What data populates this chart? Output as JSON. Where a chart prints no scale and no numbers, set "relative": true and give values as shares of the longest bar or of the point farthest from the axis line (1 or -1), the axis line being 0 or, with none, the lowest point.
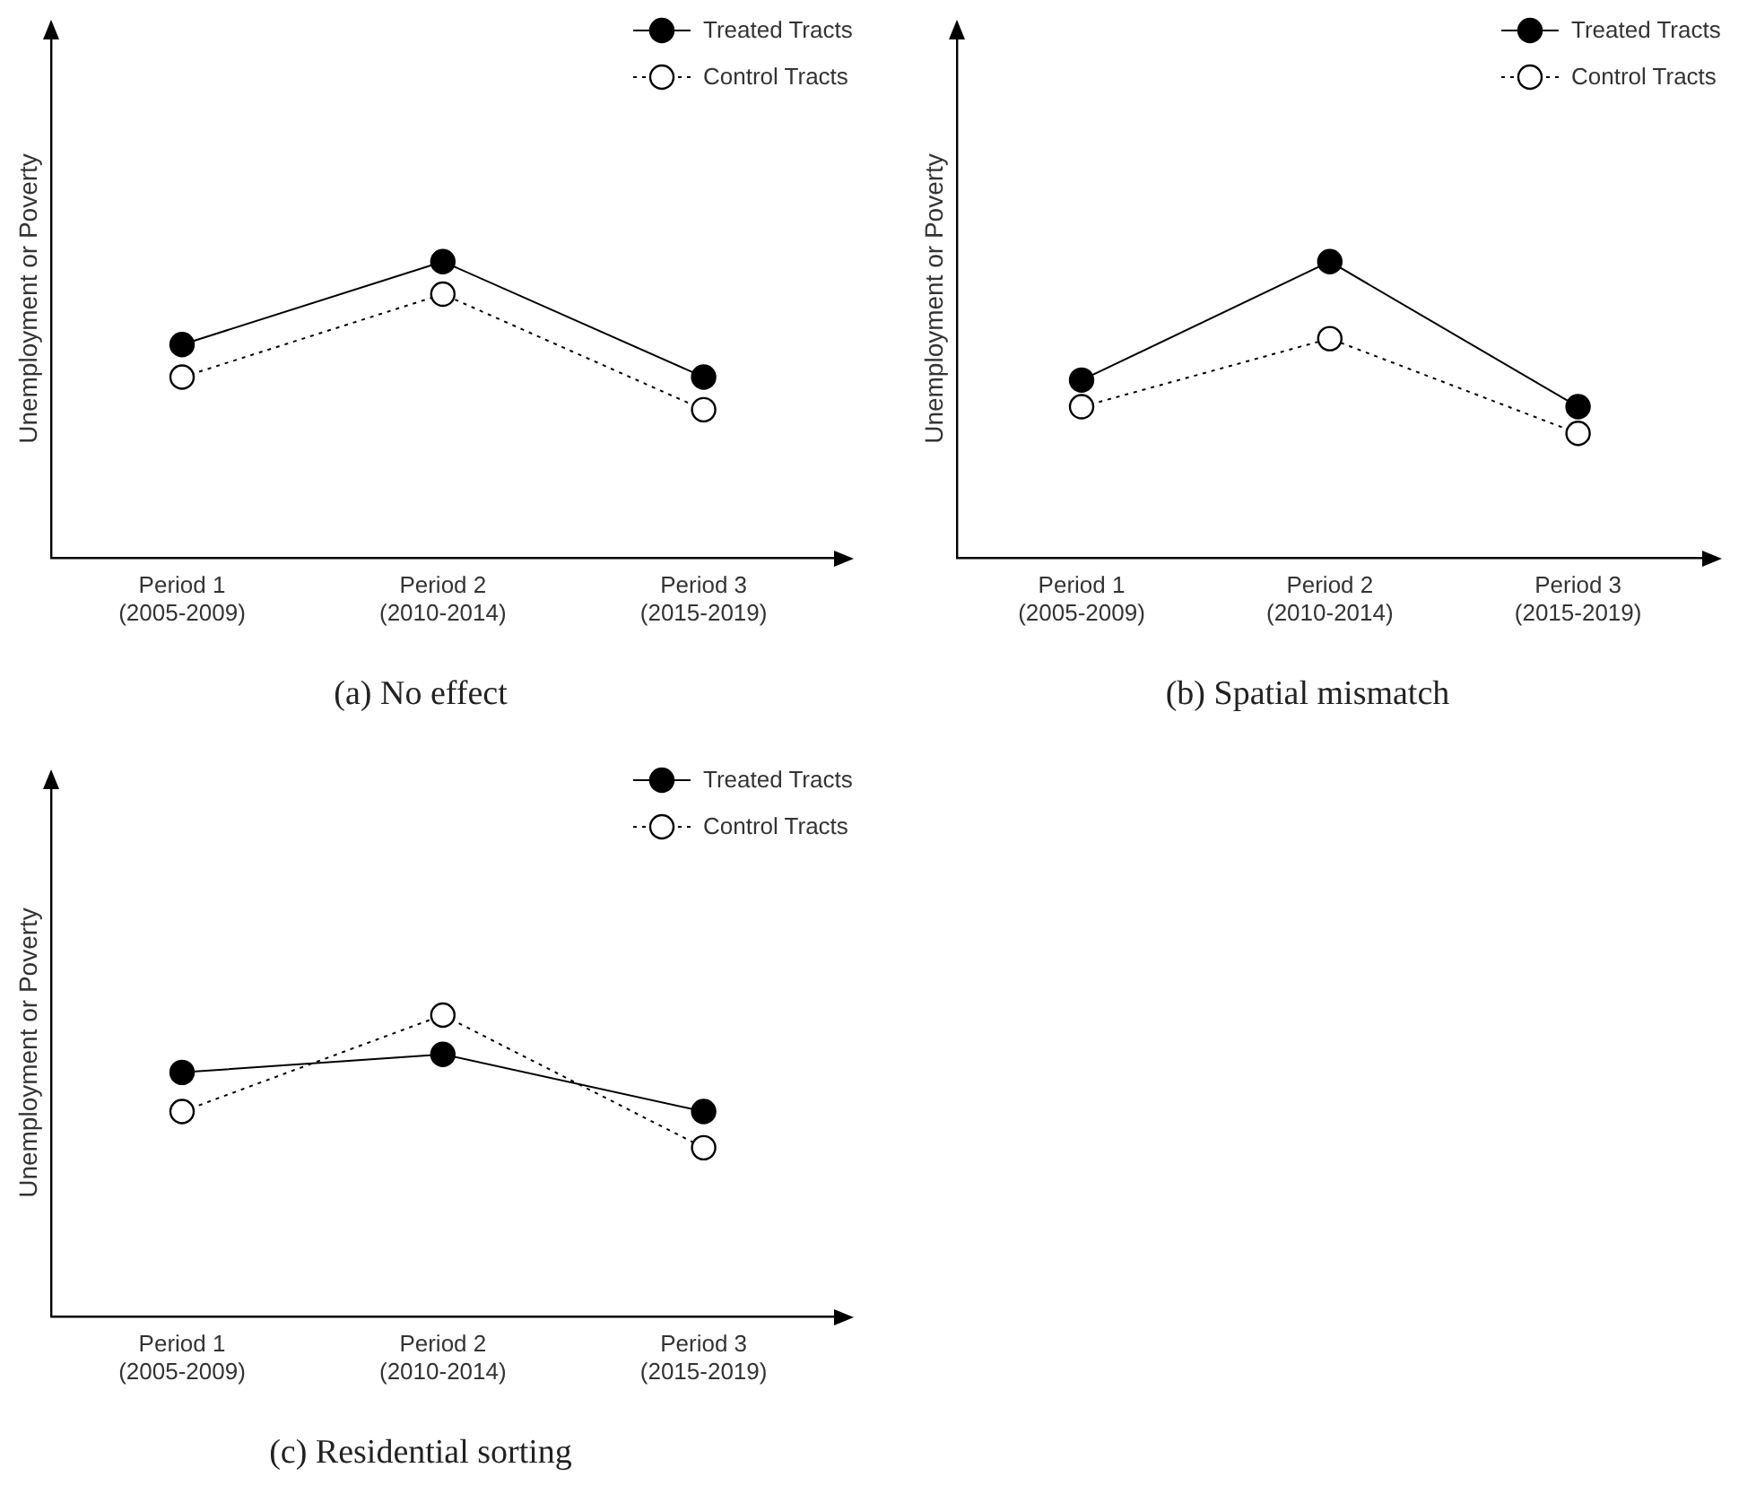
{
  "chart_data": [
    {
      "type": "line",
      "title": "(a) No effect",
      "ylabel": "Unemployment or Poverty",
      "relative": true,
      "grid": false,
      "legend": "top right",
      "marker": "circle",
      "categories": [
        "Period 1\n(2005-2009)",
        "Period 2\n(2010-2014)",
        "Period 3\n(2015-2019)"
      ],
      "series": [
        {
          "name": "Treated Tracts",
          "color": "#000000",
          "line_style": "solid",
          "values": [
            0.72,
            1,
            0.61
          ]
        },
        {
          "name": "Control Tracts",
          "color": "#ffffff",
          "line_style": "dotted",
          "values": [
            0.61,
            0.89,
            0.5
          ]
        }
      ]
    },
    {
      "type": "line",
      "title": "(b) Spatial mismatch",
      "ylabel": "Unemployment or Poverty",
      "relative": true,
      "grid": false,
      "legend": "top right",
      "marker": "circle",
      "categories": [
        "Period 1\n(2005-2009)",
        "Period 2\n(2010-2014)",
        "Period 3\n(2015-2019)"
      ],
      "series": [
        {
          "name": "Treated Tracts",
          "color": "#000000",
          "line_style": "solid",
          "values": [
            0.6,
            1,
            0.51
          ]
        },
        {
          "name": "Control Tracts",
          "color": "#ffffff",
          "line_style": "dotted",
          "values": [
            0.51,
            0.74,
            0.42
          ]
        }
      ]
    },
    {
      "type": "line",
      "title": "(c) Residential sorting",
      "ylabel": "Unemployment or Poverty",
      "relative": true,
      "grid": false,
      "legend": "top right",
      "marker": "circle",
      "categories": [
        "Period 1\n(2005-2009)",
        "Period 2\n(2010-2014)",
        "Period 3\n(2015-2019)"
      ],
      "series": [
        {
          "name": "Treated Tracts",
          "color": "#000000",
          "line_style": "solid",
          "values": [
            0.81,
            0.87,
            0.68
          ]
        },
        {
          "name": "Control Tracts",
          "color": "#ffffff",
          "line_style": "dotted",
          "values": [
            0.68,
            1,
            0.56
          ]
        }
      ]
    }
  ]
}
